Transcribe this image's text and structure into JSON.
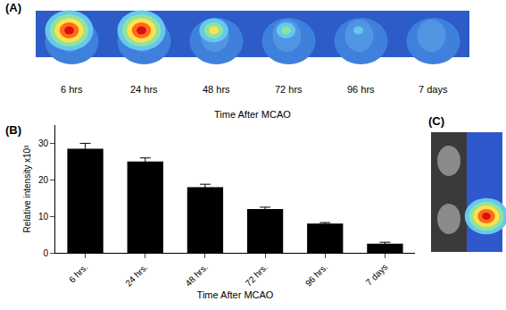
{
  "chart_data": {
    "type": "bar",
    "panel_label": "(B)",
    "x_label": "Time After MCAO",
    "y_label": "Relative intensity x10³",
    "categories": [
      "6 hrs.",
      "24 hrs.",
      "48 hrs.",
      "72 hrs.",
      "96 hrs.",
      "7 days"
    ],
    "values": [
      28.5,
      25,
      18,
      12,
      8,
      2.5
    ],
    "errors": [
      1.5,
      1,
      0.8,
      0.5,
      0.3,
      0.4
    ],
    "color": "#000000",
    "ylim": [
      0,
      35
    ],
    "yticks": [
      0,
      10,
      20,
      30
    ],
    "grid": false
  },
  "images": {
    "panel_a": {
      "panel_label": "(A)",
      "time_labels": [
        "6 hrs",
        "24 hrs",
        "48 hrs",
        "72 hrs",
        "96 hrs",
        "7 days"
      ],
      "caption": "Time After MCAO"
    },
    "panel_c": {
      "panel_label": "(C)"
    }
  }
}
